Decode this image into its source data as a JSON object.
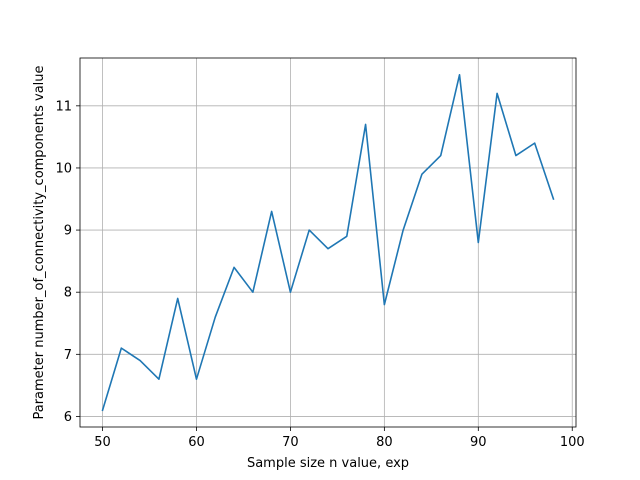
{
  "chart_data": {
    "type": "line",
    "xlabel": "Sample size n value, exp",
    "ylabel": "Parameter number_of_connectivity_components value",
    "xlim": [
      47.6,
      100.4
    ],
    "ylim": [
      5.83,
      11.77
    ],
    "x_ticks": [
      50,
      60,
      70,
      80,
      90,
      100
    ],
    "y_ticks": [
      6,
      7,
      8,
      9,
      10,
      11
    ],
    "grid": true,
    "series": [
      {
        "color": "#1f77b4",
        "x": [
          50,
          52,
          54,
          56,
          58,
          60,
          62,
          64,
          66,
          68,
          70,
          72,
          74,
          76,
          78,
          80,
          82,
          84,
          86,
          88,
          90,
          92,
          94,
          96,
          98
        ],
        "y": [
          6.1,
          7.1,
          6.9,
          6.6,
          7.9,
          6.6,
          7.6,
          8.4,
          8.0,
          9.3,
          8.0,
          9.0,
          8.7,
          8.9,
          10.7,
          7.8,
          9.0,
          9.9,
          10.2,
          11.5,
          8.8,
          11.2,
          10.2,
          10.4,
          9.5
        ]
      }
    ]
  }
}
